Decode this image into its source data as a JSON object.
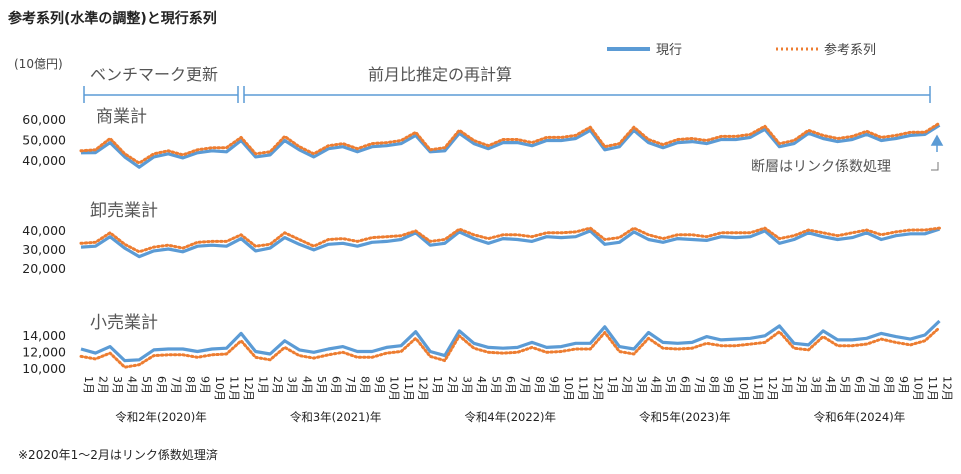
{
  "title": "参考系列(水準の調整)と現行系列",
  "unit_label": "(10億円)",
  "legend": {
    "current": "現行",
    "reference": "参考系列"
  },
  "segments": {
    "benchmark": "ベンチマーク更新",
    "recalc": "前月比推定の再計算"
  },
  "annotation": "断層はリンク係数処理",
  "footnote": "※2020年1～2月はリンク係数処理済",
  "colors": {
    "current": "#5b9bd5",
    "reference": "#ed7d31",
    "bracket": "#5b9bd5"
  },
  "chart_data": {
    "type": "line",
    "x_month_labels": [
      "1月",
      "2月",
      "3月",
      "4月",
      "5月",
      "6月",
      "7月",
      "8月",
      "9月",
      "10月",
      "11月",
      "12月"
    ],
    "x_year_labels": [
      "令和2年(2020)年",
      "令和3年(2021)年",
      "令和4年(2022)年",
      "令和5年(2023)年",
      "令和6年(2024)年"
    ],
    "panels": [
      {
        "label": "商業計",
        "yticks": [
          40000,
          50000,
          60000
        ],
        "ytick_labels": [
          "40,000",
          "50,000",
          "60,000"
        ],
        "series": [
          {
            "name": "現行",
            "values": [
              43500,
              43600,
              48500,
              41500,
              36500,
              41500,
              43000,
              41000,
              43500,
              44500,
              44000,
              49500,
              41500,
              42500,
              49500,
              45000,
              41500,
              45500,
              46500,
              44000,
              46500,
              47000,
              48000,
              52000,
              44000,
              44500,
              53000,
              48000,
              45500,
              48500,
              48500,
              47000,
              49500,
              49500,
              50500,
              54500,
              45000,
              46500,
              54500,
              48500,
              46000,
              48500,
              49000,
              48000,
              50000,
              50000,
              51000,
              55000,
              46500,
              48000,
              53000,
              50500,
              49000,
              50000,
              52500,
              49500,
              50500,
              52000,
              52500,
              57000
            ]
          },
          {
            "name": "参考系列",
            "values": [
              44500,
              45000,
              50500,
              43000,
              38500,
              43000,
              44500,
              42500,
              45000,
              46000,
              46000,
              51000,
              43000,
              44000,
              51500,
              46500,
              43000,
              47000,
              48000,
              45500,
              48000,
              48500,
              49500,
              53500,
              45000,
              46000,
              54500,
              49500,
              47000,
              50000,
              50000,
              48500,
              51000,
              51000,
              52000,
              56000,
              46500,
              48000,
              56000,
              50000,
              47500,
              50000,
              50500,
              49500,
              51500,
              51500,
              52500,
              56500,
              48000,
              49500,
              54500,
              52000,
              50500,
              51500,
              54000,
              51000,
              52000,
              53500,
              53500,
              58000
            ]
          }
        ]
      },
      {
        "label": "卸売業計",
        "yticks": [
          20000,
          30000,
          40000
        ],
        "ytick_labels": [
          "20,000",
          "30,000",
          "40,000"
        ],
        "series": [
          {
            "name": "現行",
            "values": [
              31000,
              31500,
              36500,
              30500,
              26000,
              29000,
              30000,
              28500,
              31500,
              32000,
              31500,
              35500,
              29000,
              30500,
              36000,
              32500,
              29500,
              32500,
              33000,
              31500,
              33500,
              34000,
              35000,
              38500,
              32000,
              33000,
              39000,
              35500,
              33000,
              35500,
              35000,
              34000,
              36500,
              36000,
              36500,
              39500,
              32500,
              33500,
              39000,
              35000,
              33500,
              35500,
              35000,
              34500,
              36500,
              36000,
              36500,
              39500,
              33000,
              35000,
              38500,
              36500,
              35000,
              36000,
              38500,
              35000,
              37000,
              38000,
              38000,
              40500
            ]
          },
          {
            "name": "参考系列",
            "values": [
              33000,
              33500,
              38500,
              32500,
              28500,
              31000,
              32000,
              30500,
              33500,
              34000,
              34000,
              37500,
              31500,
              32500,
              38500,
              35000,
              31500,
              35000,
              35500,
              34000,
              36000,
              36500,
              37000,
              39500,
              34000,
              35000,
              40500,
              37500,
              35500,
              37500,
              37500,
              36500,
              38500,
              38500,
              39000,
              41000,
              35000,
              36000,
              41000,
              37500,
              35500,
              37500,
              37500,
              36500,
              38500,
              38500,
              38500,
              41000,
              35500,
              37000,
              40000,
              38500,
              37000,
              38500,
              40000,
              37500,
              39000,
              40000,
              40000,
              41000
            ]
          }
        ]
      },
      {
        "label": "小売業計",
        "yticks": [
          10000,
          12000,
          14000
        ],
        "ytick_labels": [
          "10,000",
          "12,000",
          "14,000"
        ],
        "series": [
          {
            "name": "現行",
            "values": [
              12300,
              11800,
              12600,
              10900,
              11000,
              12200,
              12300,
              12300,
              12000,
              12300,
              12400,
              14200,
              12000,
              11700,
              13300,
              12200,
              11900,
              12300,
              12600,
              12000,
              12000,
              12500,
              12700,
              14400,
              12000,
              11500,
              14500,
              13000,
              12500,
              12400,
              12500,
              13100,
              12500,
              12600,
              13000,
              13000,
              15000,
              12600,
              12300,
              14300,
              13100,
              13000,
              13100,
              13800,
              13400,
              13500,
              13600,
              13900,
              15100,
              13000,
              12800,
              14500,
              13400,
              13400,
              13600,
              14200,
              13800,
              13500,
              14000,
              15700
            ]
          },
          {
            "name": "参考系列",
            "values": [
              11400,
              11100,
              11800,
              10100,
              10400,
              11500,
              11600,
              11600,
              11300,
              11600,
              11700,
              13300,
              11300,
              11000,
              12500,
              11500,
              11200,
              11600,
              11900,
              11300,
              11300,
              11800,
              12000,
              13600,
              11400,
              10900,
              13900,
              12400,
              11900,
              11800,
              11900,
              12500,
              11900,
              12000,
              12300,
              12300,
              14300,
              12000,
              11700,
              13600,
              12400,
              12300,
              12400,
              13000,
              12700,
              12700,
              12900,
              13100,
              14400,
              12400,
              12200,
              13800,
              12700,
              12700,
              12900,
              13500,
              13100,
              12800,
              13300,
              14900
            ]
          }
        ]
      }
    ]
  }
}
